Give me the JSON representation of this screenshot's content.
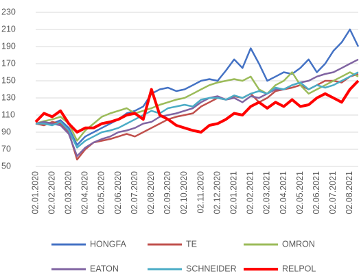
{
  "chart_data": {
    "type": "line",
    "categories": [
      "02.01.2020",
      null,
      "02.02.2020",
      null,
      "02.03.2020",
      null,
      "02.04.2020",
      null,
      "02.05.2020",
      null,
      "02.06.2020",
      null,
      "02.07.2020",
      null,
      "02.08.2020",
      null,
      "02.09.2020",
      null,
      "02.10.2020",
      null,
      "02.11.2020",
      null,
      "02.12.2020",
      null,
      "02.01.2021",
      null,
      "02.02.2021",
      null,
      "02.03.2021",
      null,
      "02.04.2021",
      null,
      "02.05.2021",
      null,
      "02.06.2021",
      null,
      "02.07.2021",
      null,
      "02.08.2021",
      null
    ],
    "ylim": [
      50,
      230
    ],
    "yticks": [
      50,
      70,
      90,
      110,
      130,
      150,
      170,
      190,
      210,
      230
    ],
    "grid": true,
    "series": [
      {
        "name": "HONGFA",
        "color": "#4472c4",
        "values": [
          100,
          102,
          100,
          104,
          95,
          75,
          85,
          90,
          95,
          100,
          105,
          112,
          115,
          120,
          135,
          140,
          142,
          138,
          140,
          145,
          150,
          152,
          150,
          162,
          175,
          165,
          188,
          170,
          150,
          155,
          160,
          158,
          165,
          175,
          160,
          170,
          185,
          195,
          210,
          190
        ]
      },
      {
        "name": "TE",
        "color": "#c0504d",
        "values": [
          100,
          98,
          102,
          100,
          90,
          58,
          70,
          78,
          80,
          82,
          85,
          88,
          85,
          90,
          95,
          100,
          105,
          108,
          110,
          112,
          120,
          125,
          130,
          128,
          132,
          130,
          135,
          125,
          130,
          138,
          140,
          142,
          145,
          140,
          145,
          150,
          150,
          148,
          155,
          158
        ]
      },
      {
        "name": "OMRON",
        "color": "#9bbb59",
        "values": [
          100,
          103,
          105,
          108,
          100,
          80,
          92,
          100,
          108,
          112,
          115,
          118,
          112,
          115,
          118,
          122,
          125,
          128,
          130,
          135,
          140,
          145,
          148,
          150,
          152,
          150,
          155,
          140,
          135,
          145,
          150,
          160,
          145,
          135,
          140,
          145,
          150,
          155,
          160,
          155
        ]
      },
      {
        "name": "EATON",
        "color": "#8064a2",
        "values": [
          100,
          102,
          100,
          98,
          88,
          62,
          72,
          78,
          82,
          85,
          90,
          92,
          95,
          100,
          102,
          108,
          110,
          112,
          115,
          118,
          125,
          130,
          132,
          128,
          130,
          125,
          132,
          130,
          135,
          140,
          140,
          145,
          148,
          150,
          155,
          158,
          160,
          165,
          170,
          175
        ]
      },
      {
        "name": "SCHNEIDER",
        "color": "#4bacc6",
        "values": [
          100,
          100,
          98,
          102,
          92,
          72,
          80,
          85,
          90,
          92,
          95,
          100,
          105,
          110,
          115,
          112,
          118,
          120,
          122,
          120,
          128,
          130,
          130,
          128,
          133,
          130,
          135,
          138,
          135,
          142,
          140,
          145,
          148,
          140,
          145,
          142,
          145,
          150,
          155,
          160
        ]
      },
      {
        "name": "RELPOL",
        "color": "#ff0000",
        "values": [
          102,
          112,
          108,
          115,
          100,
          90,
          95,
          95,
          100,
          102,
          105,
          110,
          112,
          105,
          140,
          110,
          105,
          98,
          95,
          92,
          90,
          98,
          100,
          105,
          112,
          110,
          120,
          125,
          118,
          125,
          120,
          128,
          120,
          122,
          130,
          135,
          130,
          125,
          140,
          150
        ]
      }
    ]
  }
}
